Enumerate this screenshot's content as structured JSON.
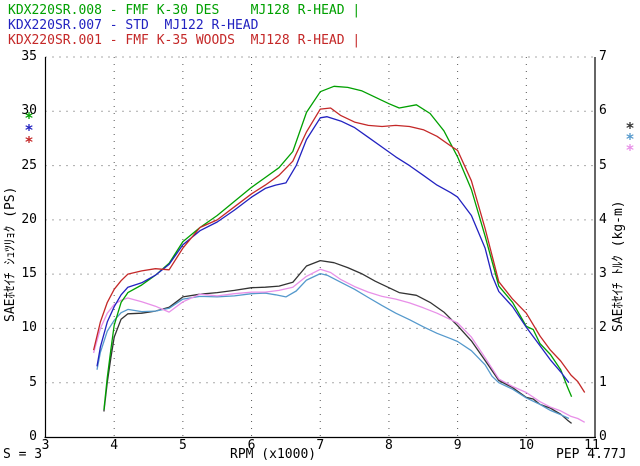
{
  "header": {
    "runs": [
      {
        "label": "KDX220SR.008 - FMF K-30 DES    MJ128 R-HEAD |",
        "color": "#00a000"
      },
      {
        "label": "KDX220SR.007 - STD  MJ122 R-HEAD",
        "color": "#2222c0"
      },
      {
        "label": "KDX220SR.001 - FMF K-35 WOODS  MJ128 R-HEAD |",
        "color": "#c42828"
      }
    ]
  },
  "footer": {
    "left": "S = 3",
    "center": "RPM (x1000)",
    "right": "PEP 4.77J"
  },
  "axes": {
    "xlabel": "RPM (x1000)",
    "ylabel_left": "SAEﾎｾｲﾁ ｼｭﾂﾘｮｸ (PS)",
    "ylabel_right": "SAEﾎｾｲﾁ ﾄﾙｸ (kg-m)",
    "x_ticks": [
      3,
      4,
      5,
      6,
      7,
      8,
      9,
      10,
      11
    ],
    "y_left_ticks": [
      0,
      5,
      10,
      15,
      20,
      25,
      30,
      35
    ],
    "y_right_ticks": [
      0,
      1,
      2,
      3,
      4,
      5,
      6,
      7
    ]
  },
  "legend_markers": {
    "glyph": "*",
    "left_colors": [
      "#00a000",
      "#2222c0",
      "#c42828"
    ],
    "right_colors": [
      "#333333",
      "#5599cc",
      "#e890e8"
    ]
  },
  "chart_data": {
    "type": "line",
    "title": "",
    "xlabel": "RPM (x1000)",
    "ylabel_left": "SAEﾎｾｲﾁ ｼｭﾂﾘｮｸ (PS)",
    "ylabel_right": "SAEﾎｾｲﾁ ﾄﾙｸ (kg-m)",
    "x_range": [
      3,
      11
    ],
    "y_left_range": [
      0,
      35
    ],
    "y_right_range": [
      0,
      7
    ],
    "grid": "dotted",
    "legend_position": "header-top-left",
    "torque_formula": "kg_m = 0.7162 * PS / rpm_x1000",
    "series": [
      {
        "name": "KDX220SR.008",
        "setup": "FMF K-30 DES MJ128 R-HEAD",
        "power_color": "#00a000",
        "torque_color": "#333333",
        "rpm": [
          3.85,
          3.9,
          3.95,
          4.0,
          4.1,
          4.2,
          4.4,
          4.6,
          4.8,
          5.0,
          5.25,
          5.5,
          5.75,
          6.0,
          6.2,
          6.4,
          6.6,
          6.8,
          7.0,
          7.2,
          7.4,
          7.6,
          7.8,
          8.0,
          8.15,
          8.4,
          8.6,
          8.8,
          9.0,
          9.2,
          9.4,
          9.6,
          9.8,
          10.0,
          10.1,
          10.2,
          10.35,
          10.5,
          10.6,
          10.66
        ],
        "ps": [
          2.5,
          5.5,
          8.0,
          10.3,
          12.4,
          13.3,
          14.0,
          14.9,
          16.0,
          18.0,
          19.3,
          20.4,
          21.7,
          23.0,
          23.9,
          24.8,
          26.3,
          29.9,
          31.8,
          32.3,
          32.2,
          31.9,
          31.3,
          30.7,
          30.3,
          30.6,
          29.8,
          28.2,
          25.8,
          22.8,
          18.5,
          13.9,
          12.4,
          10.2,
          9.9,
          8.6,
          7.6,
          6.2,
          4.6,
          3.7
        ],
        "kg_m": [
          0.47,
          1.01,
          1.45,
          1.84,
          2.17,
          2.27,
          2.28,
          2.32,
          2.39,
          2.58,
          2.63,
          2.66,
          2.7,
          2.75,
          2.76,
          2.78,
          2.85,
          3.15,
          3.25,
          3.21,
          3.12,
          3.01,
          2.87,
          2.75,
          2.66,
          2.61,
          2.48,
          2.3,
          2.05,
          1.77,
          1.41,
          1.04,
          0.91,
          0.73,
          0.7,
          0.6,
          0.53,
          0.42,
          0.31,
          0.25
        ]
      },
      {
        "name": "KDX220SR.007",
        "setup": "STD MJ122 R-HEAD",
        "power_color": "#2222c0",
        "torque_color": "#5599cc",
        "rpm": [
          3.75,
          3.8,
          3.9,
          4.0,
          4.1,
          4.2,
          4.4,
          4.6,
          4.8,
          5.0,
          5.25,
          5.5,
          5.75,
          6.0,
          6.2,
          6.35,
          6.5,
          6.65,
          6.8,
          7.0,
          7.1,
          7.3,
          7.5,
          7.7,
          7.9,
          8.1,
          8.3,
          8.5,
          8.7,
          8.9,
          9.0,
          9.2,
          9.4,
          9.5,
          9.6,
          9.8,
          10.0,
          10.2,
          10.35,
          10.5,
          10.62
        ],
        "ps": [
          6.5,
          8.3,
          10.6,
          12.0,
          13.1,
          13.8,
          14.2,
          14.9,
          15.9,
          17.7,
          19.0,
          19.8,
          20.9,
          22.1,
          22.9,
          23.2,
          23.4,
          25.0,
          27.4,
          29.4,
          29.5,
          29.1,
          28.5,
          27.6,
          26.7,
          25.8,
          25.0,
          24.1,
          23.2,
          22.5,
          22.1,
          20.4,
          17.4,
          14.9,
          13.4,
          12.0,
          10.1,
          8.4,
          7.1,
          6.0,
          5.0
        ],
        "kg_m": [
          1.24,
          1.56,
          1.95,
          2.15,
          2.29,
          2.35,
          2.31,
          2.32,
          2.37,
          2.54,
          2.59,
          2.58,
          2.6,
          2.64,
          2.65,
          2.62,
          2.58,
          2.69,
          2.89,
          3.01,
          2.98,
          2.85,
          2.72,
          2.57,
          2.42,
          2.28,
          2.16,
          2.03,
          1.91,
          1.81,
          1.76,
          1.59,
          1.33,
          1.12,
          1.0,
          0.88,
          0.72,
          0.6,
          0.49,
          0.41,
          0.34
        ]
      },
      {
        "name": "KDX220SR.001",
        "setup": "FMF K-35 WOODS MJ128 R-HEAD",
        "power_color": "#c42828",
        "torque_color": "#e890e8",
        "rpm": [
          3.7,
          3.8,
          3.9,
          4.0,
          4.1,
          4.2,
          4.4,
          4.6,
          4.8,
          5.0,
          5.25,
          5.5,
          5.75,
          6.0,
          6.2,
          6.4,
          6.6,
          6.8,
          7.0,
          7.15,
          7.3,
          7.5,
          7.7,
          7.9,
          8.1,
          8.3,
          8.5,
          8.7,
          8.9,
          9.0,
          9.2,
          9.4,
          9.6,
          9.8,
          10.0,
          10.2,
          10.35,
          10.5,
          10.65,
          10.75,
          10.85
        ],
        "ps": [
          8.0,
          10.6,
          12.4,
          13.6,
          14.4,
          15.0,
          15.3,
          15.5,
          15.4,
          17.4,
          19.3,
          20.0,
          21.2,
          22.4,
          23.2,
          24.1,
          25.4,
          28.1,
          30.2,
          30.3,
          29.6,
          29.0,
          28.7,
          28.6,
          28.7,
          28.6,
          28.3,
          27.7,
          26.8,
          26.4,
          23.6,
          19.2,
          14.3,
          12.7,
          11.4,
          9.3,
          8.0,
          7.0,
          5.7,
          5.1,
          4.1
        ],
        "kg_m": [
          1.55,
          2.0,
          2.28,
          2.44,
          2.52,
          2.56,
          2.49,
          2.41,
          2.3,
          2.49,
          2.63,
          2.6,
          2.64,
          2.67,
          2.67,
          2.7,
          2.76,
          2.96,
          3.09,
          3.03,
          2.9,
          2.77,
          2.67,
          2.59,
          2.54,
          2.47,
          2.38,
          2.28,
          2.16,
          2.1,
          1.84,
          1.46,
          1.07,
          0.93,
          0.82,
          0.65,
          0.55,
          0.48,
          0.38,
          0.34,
          0.27
        ]
      }
    ]
  },
  "style": {
    "background": "#ffffff",
    "axis_color": "#000000",
    "grid_dot_color": "#555555"
  }
}
